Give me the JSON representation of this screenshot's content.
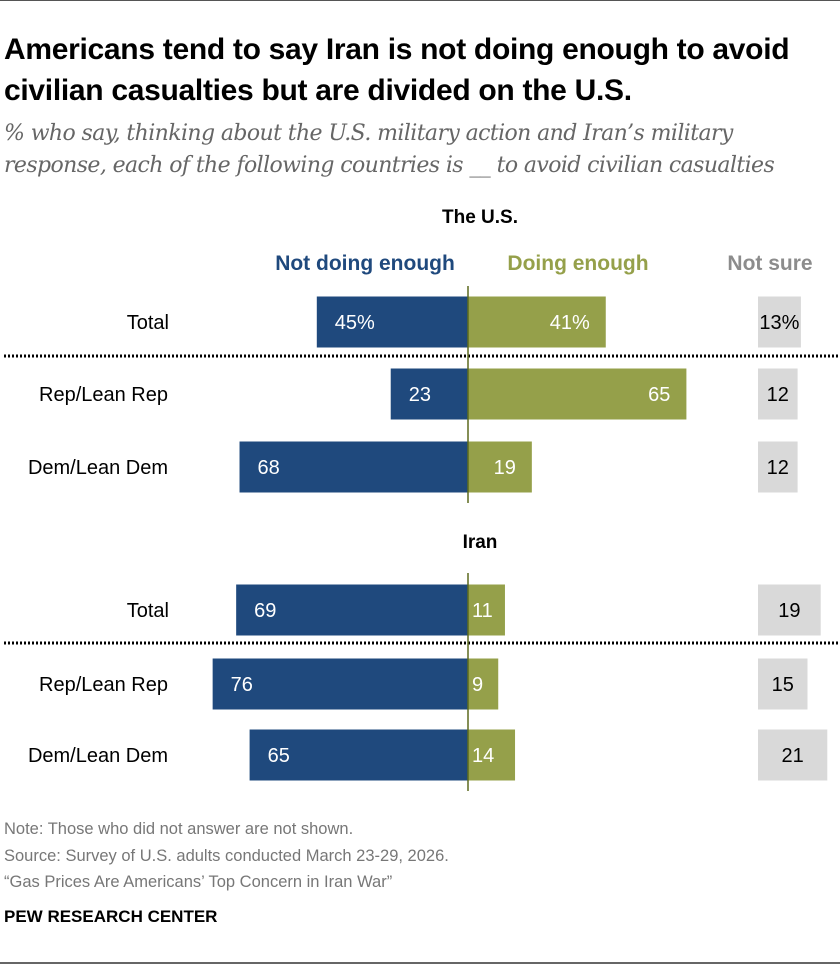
{
  "title": "Americans tend to say Iran is not doing enough to avoid civilian casualties but are divided on the U.S.",
  "subtitle": "% who say, thinking about the U.S. military action and Iran’s military response, each of the following countries is __ to avoid civilian casualties",
  "chart_data": {
    "type": "bar",
    "orientation": "horizontal-diverging",
    "legend": [
      {
        "name": "Not doing enough",
        "color": "#1f497d"
      },
      {
        "name": "Doing enough",
        "color": "#95a04a"
      },
      {
        "name": "Not sure",
        "color": "#d9d9d9",
        "label_color": "#8c8c8c"
      }
    ],
    "panels": [
      {
        "title": "The U.S.",
        "rows": [
          {
            "category": "Total",
            "not_doing_enough": 45,
            "doing_enough": 41,
            "not_sure": 13,
            "labels": [
              "45%",
              "41%",
              "13%"
            ]
          },
          {
            "category": "Rep/Lean Rep",
            "not_doing_enough": 23,
            "doing_enough": 65,
            "not_sure": 12,
            "labels": [
              "23",
              "65",
              "12"
            ]
          },
          {
            "category": "Dem/Lean Dem",
            "not_doing_enough": 68,
            "doing_enough": 19,
            "not_sure": 12,
            "labels": [
              "68",
              "19",
              "12"
            ]
          }
        ]
      },
      {
        "title": "Iran",
        "rows": [
          {
            "category": "Total",
            "not_doing_enough": 69,
            "doing_enough": 11,
            "not_sure": 19,
            "labels": [
              "69",
              "11",
              "19"
            ]
          },
          {
            "category": "Rep/Lean Rep",
            "not_doing_enough": 76,
            "doing_enough": 9,
            "not_sure": 15,
            "labels": [
              "76",
              "9",
              "15"
            ]
          },
          {
            "category": "Dem/Lean Dem",
            "not_doing_enough": 65,
            "doing_enough": 14,
            "not_sure": 21,
            "labels": [
              "65",
              "14",
              "21"
            ]
          }
        ]
      }
    ]
  },
  "footer": {
    "note": "Note: Those who did not answer are not shown.",
    "source": "Source: Survey of U.S. adults conducted March 23-29, 2026.",
    "report": "“Gas Prices Are Americans’ Top Concern in Iran War”",
    "brand": "PEW RESEARCH CENTER"
  }
}
